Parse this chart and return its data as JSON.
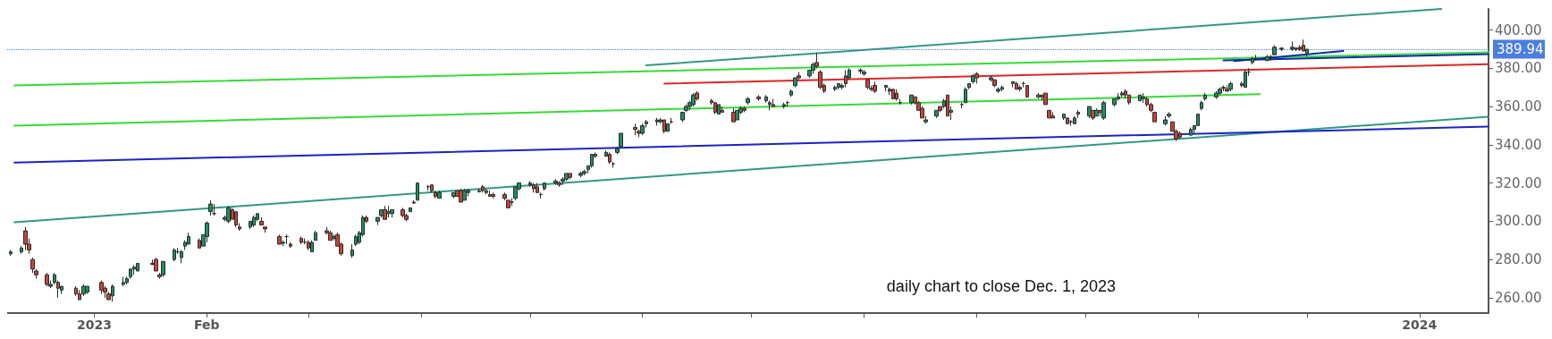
{
  "chart_data": {
    "type": "candlestick",
    "annotations": [
      "daily chart to close Dec. 1, 2023"
    ],
    "xlim": [
      "2022-12-08",
      "2024-01-20"
    ],
    "xticks": [
      {
        "value": "2023-01-01",
        "label": "2023"
      },
      {
        "value": "2023-02-01",
        "label": "Feb"
      },
      {
        "value": "2023-03-01",
        "label": null
      },
      {
        "value": "2023-04-01",
        "label": null
      },
      {
        "value": "2023-05-01",
        "label": null
      },
      {
        "value": "2023-06-01",
        "label": null
      },
      {
        "value": "2023-07-01",
        "label": null
      },
      {
        "value": "2023-08-01",
        "label": null
      },
      {
        "value": "2023-09-01",
        "label": null
      },
      {
        "value": "2023-10-01",
        "label": null
      },
      {
        "value": "2023-11-01",
        "label": null
      },
      {
        "value": "2023-12-01",
        "label": null
      },
      {
        "value": "2024-01-01",
        "label": "2024"
      }
    ],
    "ylim": [
      252,
      411
    ],
    "yticks": [
      {
        "value": 260,
        "label": "260.00"
      },
      {
        "value": 280,
        "label": "280.00"
      },
      {
        "value": 300,
        "label": "300.00"
      },
      {
        "value": 320,
        "label": "320.00"
      },
      {
        "value": 340,
        "label": "340.00"
      },
      {
        "value": 360,
        "label": "360.00"
      },
      {
        "value": 380,
        "label": "380.00"
      },
      {
        "value": 400,
        "label": "400.00"
      }
    ],
    "ref_lines": [
      {
        "axis": "y",
        "value": 389.94,
        "label": "389.94",
        "color": "#4a7ee0",
        "line_style": "dotted"
      }
    ],
    "x": [
      "2022-12-09",
      "2022-12-12",
      "2022-12-13",
      "2022-12-14",
      "2022-12-15",
      "2022-12-16",
      "2022-12-19",
      "2022-12-20",
      "2022-12-21",
      "2022-12-22",
      "2022-12-23",
      "2022-12-27",
      "2022-12-28",
      "2022-12-29",
      "2022-12-30",
      "2023-01-03",
      "2023-01-04",
      "2023-01-05",
      "2023-01-06",
      "2023-01-09",
      "2023-01-10",
      "2023-01-11",
      "2023-01-12",
      "2023-01-13",
      "2023-01-17",
      "2023-01-18",
      "2023-01-19",
      "2023-01-20",
      "2023-01-23",
      "2023-01-24",
      "2023-01-25",
      "2023-01-26",
      "2023-01-27",
      "2023-01-30",
      "2023-01-31",
      "2023-02-01",
      "2023-02-02",
      "2023-02-03",
      "2023-02-06",
      "2023-02-07",
      "2023-02-08",
      "2023-02-09",
      "2023-02-10",
      "2023-02-13",
      "2023-02-14",
      "2023-02-15",
      "2023-02-16",
      "2023-02-17",
      "2023-02-21",
      "2023-02-22",
      "2023-02-23",
      "2023-02-24",
      "2023-02-27",
      "2023-02-28",
      "2023-03-01",
      "2023-03-02",
      "2023-03-03",
      "2023-03-06",
      "2023-03-07",
      "2023-03-08",
      "2023-03-09",
      "2023-03-10",
      "2023-03-13",
      "2023-03-14",
      "2023-03-15",
      "2023-03-16",
      "2023-03-17",
      "2023-03-20",
      "2023-03-21",
      "2023-03-22",
      "2023-03-23",
      "2023-03-24",
      "2023-03-27",
      "2023-03-28",
      "2023-03-29",
      "2023-03-30",
      "2023-03-31",
      "2023-04-03",
      "2023-04-04",
      "2023-04-05",
      "2023-04-06",
      "2023-04-10",
      "2023-04-11",
      "2023-04-12",
      "2023-04-13",
      "2023-04-14",
      "2023-04-17",
      "2023-04-18",
      "2023-04-19",
      "2023-04-20",
      "2023-04-21",
      "2023-04-24",
      "2023-04-25",
      "2023-04-26",
      "2023-04-27",
      "2023-04-28",
      "2023-05-01",
      "2023-05-02",
      "2023-05-03",
      "2023-05-04",
      "2023-05-05",
      "2023-05-08",
      "2023-05-09",
      "2023-05-10",
      "2023-05-11",
      "2023-05-12",
      "2023-05-15",
      "2023-05-16",
      "2023-05-17",
      "2023-05-18",
      "2023-05-19",
      "2023-05-22",
      "2023-05-23",
      "2023-05-24",
      "2023-05-25",
      "2023-05-26",
      "2023-05-30",
      "2023-05-31",
      "2023-06-01",
      "2023-06-02",
      "2023-06-05",
      "2023-06-06",
      "2023-06-07",
      "2023-06-08",
      "2023-06-09",
      "2023-06-12",
      "2023-06-13",
      "2023-06-14",
      "2023-06-15",
      "2023-06-16",
      "2023-06-20",
      "2023-06-21",
      "2023-06-22",
      "2023-06-23",
      "2023-06-26",
      "2023-06-27",
      "2023-06-28",
      "2023-06-29",
      "2023-06-30",
      "2023-07-03",
      "2023-07-05",
      "2023-07-06",
      "2023-07-07",
      "2023-07-10",
      "2023-07-11",
      "2023-07-12",
      "2023-07-13",
      "2023-07-14",
      "2023-07-17",
      "2023-07-18",
      "2023-07-19",
      "2023-07-20",
      "2023-07-21",
      "2023-07-24",
      "2023-07-25",
      "2023-07-26",
      "2023-07-27",
      "2023-07-28",
      "2023-07-31",
      "2023-08-01",
      "2023-08-02",
      "2023-08-03",
      "2023-08-04",
      "2023-08-07",
      "2023-08-08",
      "2023-08-09",
      "2023-08-10",
      "2023-08-11",
      "2023-08-14",
      "2023-08-15",
      "2023-08-16",
      "2023-08-17",
      "2023-08-18",
      "2023-08-21",
      "2023-08-22",
      "2023-08-23",
      "2023-08-24",
      "2023-08-25",
      "2023-08-28",
      "2023-08-29",
      "2023-08-30",
      "2023-08-31",
      "2023-09-01",
      "2023-09-05",
      "2023-09-06",
      "2023-09-07",
      "2023-09-08",
      "2023-09-11",
      "2023-09-12",
      "2023-09-13",
      "2023-09-14",
      "2023-09-15",
      "2023-09-18",
      "2023-09-19",
      "2023-09-20",
      "2023-09-21",
      "2023-09-22",
      "2023-09-25",
      "2023-09-26",
      "2023-09-27",
      "2023-09-28",
      "2023-09-29",
      "2023-10-02",
      "2023-10-03",
      "2023-10-04",
      "2023-10-05",
      "2023-10-06",
      "2023-10-09",
      "2023-10-10",
      "2023-10-11",
      "2023-10-12",
      "2023-10-13",
      "2023-10-16",
      "2023-10-17",
      "2023-10-18",
      "2023-10-19",
      "2023-10-20",
      "2023-10-23",
      "2023-10-24",
      "2023-10-25",
      "2023-10-26",
      "2023-10-27",
      "2023-10-30",
      "2023-10-31",
      "2023-11-01",
      "2023-11-02",
      "2023-11-03",
      "2023-11-06",
      "2023-11-07",
      "2023-11-08",
      "2023-11-09",
      "2023-11-10",
      "2023-11-13",
      "2023-11-14",
      "2023-11-15",
      "2023-11-16",
      "2023-11-17",
      "2023-11-20",
      "2023-11-21",
      "2023-11-22",
      "2023-11-24",
      "2023-11-27",
      "2023-11-28",
      "2023-11-29",
      "2023-11-30",
      "2023-12-01"
    ],
    "ohlc": [
      [
        283,
        285,
        282,
        284
      ],
      [
        284,
        287,
        283,
        286
      ],
      [
        295,
        297,
        285,
        288
      ],
      [
        288,
        291,
        283,
        285
      ],
      [
        280,
        281,
        273,
        275
      ],
      [
        274,
        275,
        270,
        272
      ],
      [
        272,
        273,
        266,
        267
      ],
      [
        266,
        269,
        265,
        267
      ],
      [
        268,
        273,
        267,
        272
      ],
      [
        268,
        269,
        260,
        265
      ],
      [
        264,
        266,
        262,
        266
      ],
      [
        265,
        266,
        261,
        262
      ],
      [
        262,
        264,
        259,
        259
      ],
      [
        262,
        267,
        261,
        266
      ],
      [
        263,
        266,
        262,
        266
      ],
      [
        268,
        269,
        262,
        264
      ],
      [
        265,
        266,
        260,
        263
      ],
      [
        262,
        263,
        259,
        259
      ],
      [
        261,
        267,
        258,
        266
      ],
      [
        267,
        271,
        266,
        268
      ],
      [
        268,
        271,
        267,
        270
      ],
      [
        271,
        275,
        270,
        275
      ],
      [
        275,
        277,
        272,
        276
      ],
      [
        274,
        278,
        274,
        278
      ],
      [
        277.5,
        280,
        277,
        278
      ],
      [
        280,
        281,
        274,
        274
      ],
      [
        272,
        273,
        270,
        271
      ],
      [
        272,
        279,
        271,
        279
      ],
      [
        280,
        286,
        279,
        285
      ],
      [
        284,
        286,
        283,
        284
      ],
      [
        281,
        285,
        278,
        284
      ],
      [
        287,
        290,
        285,
        289
      ],
      [
        288,
        294,
        288,
        292
      ],
      [
        290,
        291,
        286,
        286
      ],
      [
        287,
        293,
        287,
        293
      ],
      [
        292,
        300,
        289,
        299
      ],
      [
        305,
        311,
        303,
        309
      ],
      [
        304,
        309,
        303,
        304
      ],
      [
        302,
        303,
        300,
        301
      ],
      [
        300,
        308,
        299,
        307
      ],
      [
        306,
        307,
        301,
        301
      ],
      [
        305,
        305,
        297,
        298
      ],
      [
        297,
        299,
        295,
        296
      ],
      [
        297,
        300,
        296,
        300
      ],
      [
        298,
        303,
        297,
        302
      ],
      [
        301,
        304,
        300,
        304
      ],
      [
        300,
        302,
        298,
        298
      ],
      [
        297,
        297,
        294,
        296
      ],
      [
        292,
        293,
        288,
        288
      ],
      [
        288.5,
        290,
        287,
        289
      ],
      [
        292,
        293,
        288,
        292
      ],
      [
        288,
        289,
        286,
        287
      ],
      [
        291,
        292,
        288,
        289
      ],
      [
        289,
        291,
        288,
        289
      ],
      [
        289,
        290,
        285,
        286
      ],
      [
        284,
        290,
        284,
        289
      ],
      [
        290,
        295,
        290,
        294
      ],
      [
        295,
        297,
        293,
        294
      ],
      [
        294,
        295,
        290,
        290
      ],
      [
        291,
        293,
        290,
        292
      ],
      [
        293,
        294,
        287,
        287
      ],
      [
        288,
        289,
        282,
        283
      ],
      [
        282,
        288,
        281,
        285
      ],
      [
        288,
        293,
        287,
        292
      ],
      [
        289,
        295,
        288,
        294
      ],
      [
        293,
        303,
        292,
        302
      ],
      [
        302,
        303,
        299,
        300
      ],
      [
        300,
        302,
        298,
        302
      ],
      [
        303,
        306,
        302,
        306
      ],
      [
        306,
        308,
        301,
        301
      ],
      [
        304,
        308,
        302,
        305
      ],
      [
        304,
        306,
        302,
        306
      ],
      [
        306,
        307,
        302,
        303
      ],
      [
        303,
        304,
        300,
        301
      ],
      [
        305,
        307,
        305,
        307
      ],
      [
        309.5,
        311,
        309,
        310
      ],
      [
        311,
        320,
        311,
        320
      ],
      [
        318,
        319,
        316,
        318
      ],
      [
        319,
        319,
        315,
        316
      ],
      [
        315,
        316,
        312,
        313
      ],
      [
        312,
        316,
        312,
        315
      ],
      [
        313,
        315,
        312,
        315
      ],
      [
        316,
        316,
        313,
        313
      ],
      [
        316,
        317,
        310,
        310
      ],
      [
        311,
        317,
        311,
        316
      ],
      [
        315,
        317,
        313,
        316
      ],
      [
        315.5,
        317,
        315,
        316
      ],
      [
        318,
        319,
        315,
        316
      ],
      [
        315,
        317,
        314,
        316
      ],
      [
        314,
        316,
        313,
        313
      ],
      [
        314,
        315,
        312,
        313
      ],
      [
        314,
        315,
        311,
        312
      ],
      [
        311,
        311,
        307,
        307
      ],
      [
        310,
        312,
        308,
        310
      ],
      [
        312,
        318,
        311,
        318
      ],
      [
        317,
        320,
        316,
        320
      ],
      [
        319,
        321,
        318,
        320
      ],
      [
        319,
        320,
        315,
        317
      ],
      [
        318,
        320,
        315,
        315
      ],
      [
        314,
        315,
        312,
        314
      ],
      [
        317,
        320,
        316,
        320
      ],
      [
        320,
        322,
        319,
        321
      ],
      [
        320,
        321,
        318,
        319
      ],
      [
        321,
        323,
        319,
        322
      ],
      [
        322,
        325,
        321,
        325
      ],
      [
        325,
        325,
        322,
        323
      ],
      [
        324,
        326,
        323,
        325
      ],
      [
        325,
        327,
        324,
        326
      ],
      [
        327,
        329,
        325,
        329
      ],
      [
        329,
        335,
        328,
        335
      ],
      [
        335,
        336,
        333,
        334
      ],
      [
        334,
        337,
        334,
        336
      ],
      [
        335,
        336,
        330,
        331
      ],
      [
        330,
        331,
        328,
        330
      ],
      [
        336,
        339,
        335,
        338
      ],
      [
        339,
        346,
        338,
        346
      ],
      [
        349,
        351,
        345,
        348
      ],
      [
        347,
        348,
        344,
        346
      ],
      [
        346,
        351,
        345,
        350
      ],
      [
        351,
        353,
        349,
        352
      ],
      [
        352,
        354,
        350,
        353
      ],
      [
        352,
        354,
        351,
        353
      ],
      [
        353,
        353,
        346,
        347
      ],
      [
        347,
        351,
        347,
        351
      ],
      [
        352,
        354,
        351,
        352
      ],
      [
        353,
        357,
        352,
        357
      ],
      [
        358,
        361,
        357,
        360
      ],
      [
        360,
        363,
        358,
        362
      ],
      [
        361,
        367,
        360,
        366
      ],
      [
        367,
        368,
        363,
        364
      ],
      [
        363,
        364,
        361,
        362
      ],
      [
        362,
        362,
        356,
        357
      ],
      [
        356,
        361,
        356,
        361
      ],
      [
        358,
        360,
        357,
        357
      ],
      [
        357,
        359,
        352,
        352
      ],
      [
        353,
        358,
        353,
        358
      ],
      [
        357,
        360,
        356,
        359
      ],
      [
        359,
        360,
        357,
        358
      ],
      [
        362,
        365,
        361,
        364
      ],
      [
        365,
        366,
        363,
        364
      ],
      [
        363,
        366,
        362,
        365
      ],
      [
        362,
        363,
        358,
        361
      ],
      [
        361,
        364,
        360,
        360
      ],
      [
        360,
        362,
        359,
        361
      ],
      [
        362,
        363,
        360,
        362
      ],
      [
        366,
        369,
        365,
        368
      ],
      [
        371,
        375,
        370,
        375
      ],
      [
        376,
        378,
        374,
        375
      ],
      [
        376,
        379,
        375,
        379
      ],
      [
        379,
        383,
        377,
        382
      ],
      [
        383,
        388,
        380,
        381
      ],
      [
        378,
        379,
        369,
        370
      ],
      [
        371,
        372,
        367,
        368
      ],
      [
        369,
        371,
        368,
        370
      ],
      [
        370,
        372,
        369,
        372
      ],
      [
        370,
        372,
        369,
        371
      ],
      [
        376,
        379,
        370,
        372
      ],
      [
        375,
        380,
        374,
        379
      ],
      [
        378.5,
        380,
        377,
        379
      ],
      [
        377,
        379,
        376,
        378
      ],
      [
        374,
        374,
        369,
        370
      ],
      [
        369.5,
        371,
        368,
        369
      ],
      [
        371,
        373,
        367,
        368
      ],
      [
        370,
        371,
        368,
        371
      ],
      [
        369,
        370,
        366,
        368
      ],
      [
        369,
        369,
        364,
        364
      ],
      [
        367,
        369,
        363,
        364
      ],
      [
        362,
        364,
        361,
        362
      ],
      [
        362,
        366,
        361,
        366
      ],
      [
        365,
        365,
        361,
        362
      ],
      [
        362,
        363,
        358,
        358
      ],
      [
        359,
        360,
        354,
        354
      ],
      [
        352,
        355,
        351,
        353
      ],
      [
        355,
        358,
        354,
        358
      ],
      [
        360,
        360,
        357,
        358
      ],
      [
        360,
        364,
        359,
        363
      ],
      [
        366,
        366,
        355,
        355
      ],
      [
        357,
        360,
        353,
        358
      ],
      [
        361,
        362,
        359,
        361
      ],
      [
        362,
        370,
        362,
        369
      ],
      [
        370,
        372,
        369,
        372
      ],
      [
        373,
        377,
        372,
        376
      ],
      [
        377,
        378,
        372,
        375
      ],
      [
        374,
        376,
        373,
        375
      ],
      [
        374,
        374,
        370,
        371
      ],
      [
        368,
        370,
        367,
        369
      ],
      [
        369,
        371,
        368,
        370
      ],
      [
        372,
        373,
        370,
        373
      ],
      [
        372,
        373,
        369,
        369
      ],
      [
        369,
        371,
        368,
        370
      ],
      [
        372,
        373,
        370,
        372
      ],
      [
        371,
        371,
        365,
        365
      ],
      [
        365,
        367,
        364,
        366
      ],
      [
        366,
        366,
        363,
        365
      ],
      [
        367,
        367,
        361,
        361
      ],
      [
        358,
        358,
        354,
        354
      ],
      [
        355,
        357,
        354,
        354
      ],
      [
        354,
        356,
        353,
        356
      ],
      [
        354,
        354,
        351,
        351
      ],
      [
        352,
        353,
        350,
        352
      ],
      [
        351,
        355,
        351,
        354
      ],
      [
        357,
        358,
        354,
        356
      ],
      [
        355,
        360,
        354,
        360
      ],
      [
        358,
        358,
        353,
        354
      ],
      [
        355,
        359,
        355,
        358
      ],
      [
        358,
        358,
        355,
        357
      ],
      [
        354,
        363,
        353,
        362
      ],
      [
        361,
        364,
        360,
        364
      ],
      [
        364,
        367,
        363,
        365
      ],
      [
        366,
        368,
        365,
        367
      ],
      [
        368,
        369,
        364,
        366
      ],
      [
        366,
        366,
        361,
        362
      ],
      [
        363,
        366,
        363,
        366
      ],
      [
        364,
        367,
        362,
        365
      ],
      [
        364,
        365,
        360,
        361
      ],
      [
        361,
        362,
        357,
        358
      ],
      [
        357,
        357,
        352,
        352
      ],
      [
        351,
        355,
        350,
        353
      ],
      [
        355,
        357,
        354,
        356
      ],
      [
        352,
        352,
        347,
        347
      ],
      [
        347,
        348,
        342,
        343
      ],
      [
        346,
        347,
        343,
        344
      ],
      [
        345,
        349,
        345,
        348
      ],
      [
        348,
        350,
        346,
        350
      ],
      [
        350,
        356,
        350,
        356
      ],
      [
        359,
        363,
        358,
        362
      ],
      [
        364,
        367,
        363,
        366
      ],
      [
        365,
        368,
        364,
        367
      ],
      [
        367,
        370,
        366,
        369
      ],
      [
        369.5,
        371,
        368,
        370
      ],
      [
        369,
        371,
        368,
        368
      ],
      [
        369,
        373,
        368,
        372
      ],
      [
        372,
        373,
        370,
        371
      ],
      [
        370,
        379,
        370,
        378
      ],
      [
        378,
        380,
        376,
        378
      ],
      [
        383,
        386,
        382,
        385
      ],
      [
        385,
        387,
        384,
        385
      ],
      [
        384,
        387,
        384,
        386
      ],
      [
        385.5,
        387,
        384,
        386
      ],
      [
        387,
        392,
        387,
        391
      ],
      [
        390.5,
        391,
        389,
        390
      ],
      [
        390,
        394,
        389,
        391
      ],
      [
        390.5,
        391,
        389,
        390
      ],
      [
        391,
        392,
        389,
        390
      ],
      [
        392,
        395,
        389,
        389
      ],
      [
        388,
        390,
        386,
        389.94
      ]
    ],
    "series": [
      {
        "type": "line",
        "color": "#2e9a82",
        "x": [
          "2023-06-02",
          "2024-01-07"
        ],
        "values": [
          381.5,
          411
        ]
      },
      {
        "type": "line",
        "color": "#2e9a82",
        "x": [
          "2022-12-10",
          "2024-01-20"
        ],
        "values": [
          299.5,
          354.7
        ]
      },
      {
        "type": "line",
        "color": "#33dd33",
        "x": [
          "2022-12-10",
          "2024-01-20"
        ],
        "values": [
          371,
          388.3
        ]
      },
      {
        "type": "line",
        "color": "#33dd33",
        "x": [
          "2022-12-10",
          "2023-11-18"
        ],
        "values": [
          350,
          366.4
        ]
      },
      {
        "type": "line",
        "color": "#1a22cc",
        "x": [
          "2022-12-10",
          "2024-01-20"
        ],
        "values": [
          330.7,
          349.5
        ]
      },
      {
        "type": "line",
        "color": "#e02525",
        "x": [
          "2023-06-07",
          "2024-01-20"
        ],
        "values": [
          372,
          382.1
        ]
      },
      {
        "type": "line",
        "color": "#0b2aa8",
        "x": [
          "2023-11-08",
          "2024-01-20"
        ],
        "values": [
          384.1,
          387.4
        ]
      },
      {
        "type": "line",
        "color": "#0b2aa8",
        "x": [
          "2023-11-11",
          "2023-12-11"
        ],
        "values": [
          383.8,
          389
        ]
      }
    ]
  }
}
